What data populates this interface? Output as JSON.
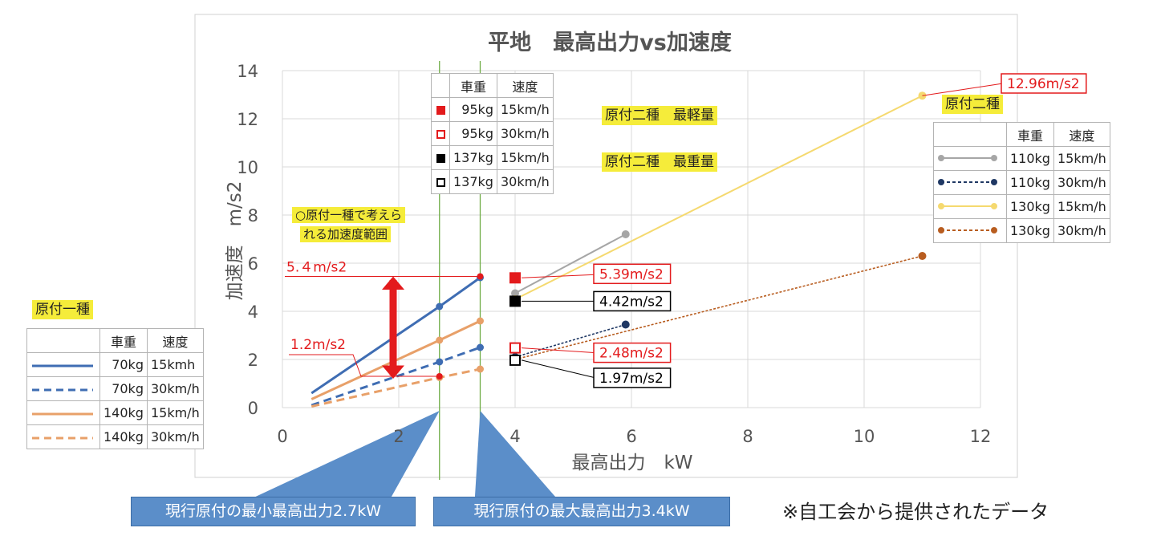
{
  "chart_data": {
    "type": "line",
    "title": "平地　最高出力vs加速度",
    "xlabel": "最高出力　kW",
    "ylabel": "加速度　m/s2",
    "xlim": [
      0,
      12
    ],
    "ylim": [
      0,
      14
    ],
    "xticks": [
      "0",
      "2",
      "4",
      "6",
      "8",
      "10",
      "12"
    ],
    "yticks": [
      "0",
      "2",
      "4",
      "6",
      "8",
      "10",
      "12",
      "14"
    ],
    "grid": true,
    "series": [
      {
        "group": "gentsuki1",
        "style": "solid",
        "color": "#3f6db3",
        "x": [
          0.5,
          2.7,
          3.4
        ],
        "y": [
          0.6,
          4.2,
          5.4
        ]
      },
      {
        "group": "gentsuki1",
        "style": "dashed",
        "color": "#3f6db3",
        "x": [
          0.5,
          2.7,
          3.4
        ],
        "y": [
          0.1,
          1.9,
          2.5
        ]
      },
      {
        "group": "gentsuki1",
        "style": "solid",
        "color": "#e8a069",
        "x": [
          0.5,
          2.7,
          3.4
        ],
        "y": [
          0.35,
          2.8,
          3.6
        ]
      },
      {
        "group": "gentsuki1",
        "style": "dashed",
        "color": "#e8a069",
        "x": [
          0.5,
          2.7,
          3.4
        ],
        "y": [
          0.05,
          1.25,
          1.6
        ]
      },
      {
        "group": "gentsuki2",
        "style": "solid",
        "color": "#a6a6a6",
        "x": [
          4.0,
          5.9
        ],
        "y": [
          4.75,
          7.2
        ]
      },
      {
        "group": "gentsuki2",
        "style": "dotted",
        "color": "#1f3864",
        "x": [
          4.0,
          5.9
        ],
        "y": [
          2.1,
          3.45
        ]
      },
      {
        "group": "gentsuki2",
        "style": "solid",
        "color": "#f5d96f",
        "x": [
          4.0,
          11.0
        ],
        "y": [
          4.5,
          12.96
        ]
      },
      {
        "group": "gentsuki2",
        "style": "dotted",
        "color": "#b85d20",
        "x": [
          4.0,
          11.0
        ],
        "y": [
          2.0,
          6.3
        ]
      }
    ],
    "markers": [
      {
        "x": 4.0,
        "y": 5.39,
        "shape": "square",
        "fill": "#e31a1c",
        "stroke": "#e31a1c"
      },
      {
        "x": 4.0,
        "y": 4.42,
        "shape": "square",
        "fill": "#000000",
        "stroke": "#000000"
      },
      {
        "x": 4.0,
        "y": 2.48,
        "shape": "square",
        "fill": "#ffffff",
        "stroke": "#e31a1c"
      },
      {
        "x": 4.0,
        "y": 1.97,
        "shape": "square",
        "fill": "#ffffff",
        "stroke": "#000000"
      },
      {
        "x": 3.4,
        "y": 5.45,
        "shape": "dot",
        "fill": "#e31a1c",
        "stroke": "#e31a1c"
      },
      {
        "x": 2.7,
        "y": 1.3,
        "shape": "dot",
        "fill": "#e31a1c",
        "stroke": "#e31a1c"
      }
    ],
    "vlines": [
      2.7,
      3.4
    ],
    "annotations": {
      "range_top": "5.４m/s2",
      "range_bottom": "1.2m/s2",
      "peak": "12.96m/s2",
      "v539": "5.39m/s2",
      "v442": "4.42m/s2",
      "v248": "2.48m/s2",
      "v197": "1.97m/s2"
    },
    "range_label_1": "○原付一種で考えら",
    "range_label_2": "れる加速度範囲",
    "legend_header": {
      "weight": "車重",
      "speed": "速度"
    },
    "legend_gentsuki1": {
      "title": "原付一種",
      "rows": [
        {
          "weight": "70kg",
          "speed": "15kmh"
        },
        {
          "weight": "70kg",
          "speed": "30km/h"
        },
        {
          "weight": "140kg",
          "speed": "15km/h"
        },
        {
          "weight": "140kg",
          "speed": "30km/h"
        }
      ]
    },
    "legend_gentsuki2": {
      "title": "原付二種",
      "rows": [
        {
          "weight": "110kg",
          "speed": "15km/h"
        },
        {
          "weight": "110kg",
          "speed": "30km/h"
        },
        {
          "weight": "130kg",
          "speed": "15km/h"
        },
        {
          "weight": "130kg",
          "speed": "30km/h"
        }
      ]
    },
    "legend_markers": {
      "rows": [
        {
          "weight": "95kg",
          "speed": "15km/h"
        },
        {
          "weight": "95kg",
          "speed": "30km/h"
        },
        {
          "weight": "137kg",
          "speed": "15km/h"
        },
        {
          "weight": "137kg",
          "speed": "30km/h"
        }
      ]
    },
    "label_lightest": "原付二種　最軽量",
    "label_heaviest": "原付二種　最重量",
    "callout_min": "現行原付の最小最高出力2.7kW",
    "callout_max": "現行原付の最大最高出力3.4kW"
  },
  "footnote": "※自工会から提供されたデータ"
}
